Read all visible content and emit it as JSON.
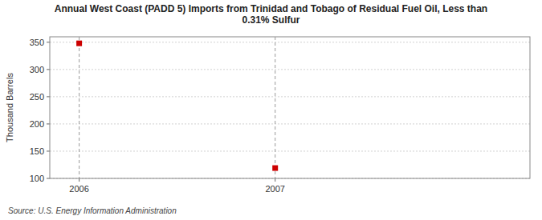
{
  "chart_data": {
    "type": "scatter",
    "title": "Annual West Coast (PADD 5) Imports from Trinidad and Tobago of Residual Fuel Oil, Less than\n0.31% Sulfur",
    "ylabel": "Thousand Barrels",
    "source": "Source: U.S. Energy Information Administration",
    "x": [
      2006,
      2007
    ],
    "values": [
      348,
      119
    ],
    "color": "#cc0000",
    "marker": "square",
    "xlim": [
      2005.85,
      2008.3
    ],
    "ylim": [
      100,
      360
    ],
    "xticks": [
      2006,
      2007
    ],
    "yticks": [
      100,
      150,
      200,
      250,
      300,
      350
    ],
    "grid": true
  }
}
